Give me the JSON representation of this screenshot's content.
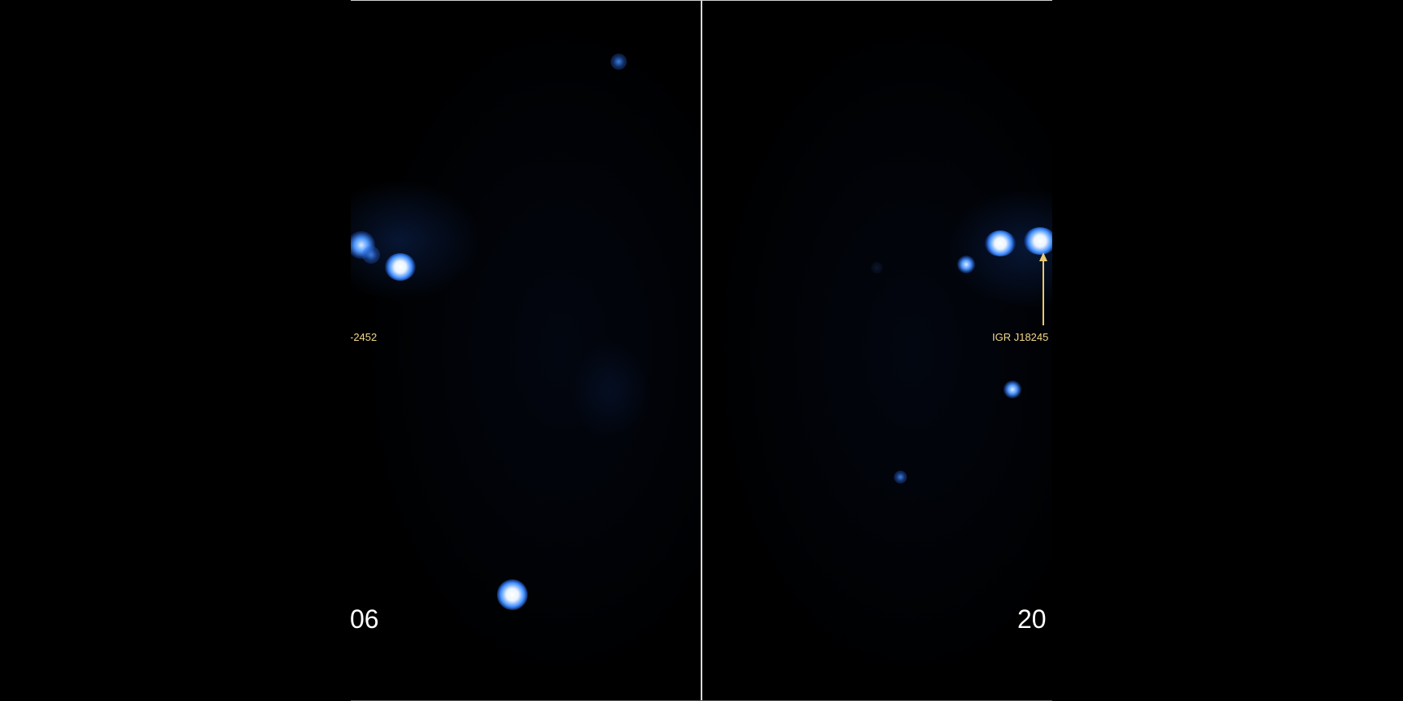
{
  "left_panel": {
    "source_label": "-2452",
    "year_label": "06"
  },
  "right_panel": {
    "source_label": "IGR J18245",
    "year_label": "20"
  },
  "colors": {
    "background": "#000000",
    "source_glow": "#3e8cff",
    "label": "#f3d98a",
    "arrow": "#e8c770",
    "year_text": "#ffffff"
  }
}
